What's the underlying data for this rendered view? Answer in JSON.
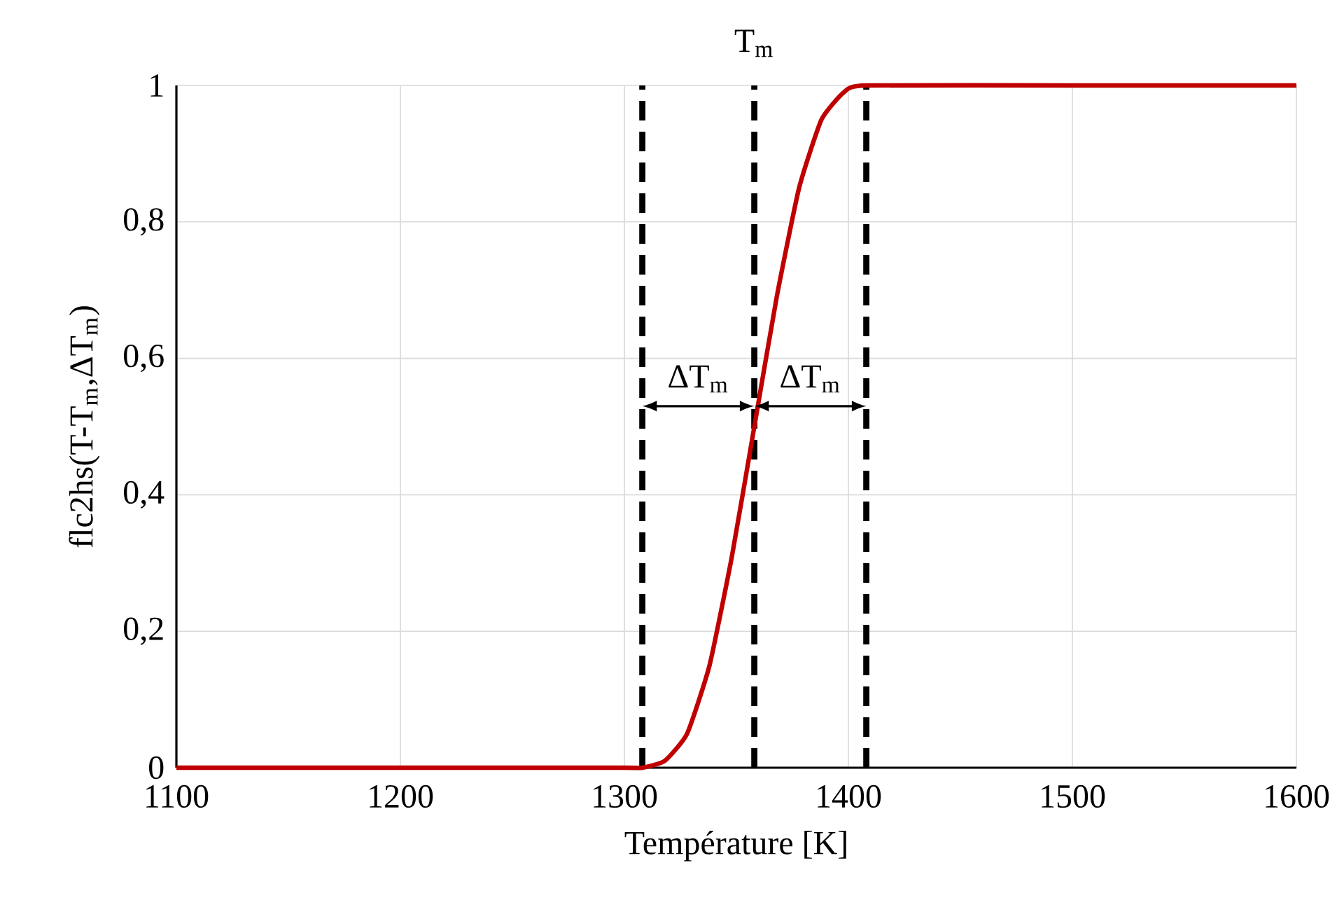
{
  "chart_data": {
    "type": "line",
    "xlabel": "Température [K]",
    "ylabel": "flc2hs(T-T$_{m}$,ΔT$_{m}$)",
    "x": [
      1100,
      1200,
      1300,
      1308,
      1318,
      1328,
      1338,
      1348,
      1358,
      1368,
      1378,
      1388,
      1398,
      1408,
      1500,
      1600
    ],
    "series": [
      {
        "color": "#c00000",
        "values": [
          0,
          0,
          0,
          0,
          0.01,
          0.05,
          0.15,
          0.31,
          0.5,
          0.69,
          0.85,
          0.95,
          0.99,
          1,
          1,
          1
        ]
      }
    ],
    "xlim": [
      1100,
      1600
    ],
    "xticks": [
      1100,
      1200,
      1300,
      1400,
      1500,
      1600
    ],
    "ylim": [
      0,
      1
    ],
    "yticks": [
      0,
      {
        "value": 0.2,
        "label": "0,2"
      },
      {
        "value": 0.4,
        "label": "0,4"
      },
      {
        "value": 0.6,
        "label": "0,6"
      },
      {
        "value": 0.8,
        "label": "0,8"
      },
      1
    ],
    "grid": true,
    "marker": "none",
    "line_style": "solid",
    "ref_lines": [
      {
        "axis": "x",
        "value": 1308,
        "line_style": "dashed",
        "color": "#000000"
      },
      {
        "axis": "x",
        "value": 1358,
        "label": "T$_{m}$",
        "line_style": "dashed",
        "color": "#000000"
      },
      {
        "axis": "x",
        "value": 1408,
        "line_style": "dashed",
        "color": "#000000"
      }
    ],
    "annotations": [
      "ΔT$_{m}$",
      "ΔT$_{m}$"
    ]
  }
}
